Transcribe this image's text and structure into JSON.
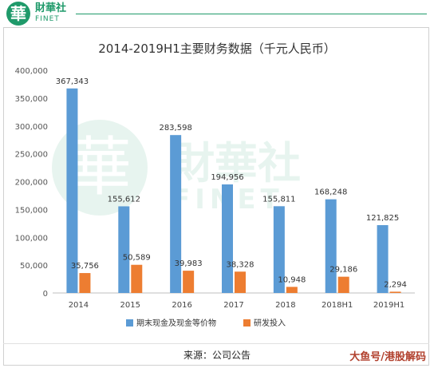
{
  "brand": {
    "logo_char": "華",
    "name": "財華社",
    "sub": "FINET"
  },
  "source_text": "来源：公司公告",
  "corner_mark": "大鱼号/港股解码",
  "colors": {
    "cash": "#5b9bd5",
    "rnd": "#ed7d31",
    "brand_green": "#1f9a6a"
  },
  "chart_data": {
    "type": "bar",
    "title": "2014-2019H1主要财务数据（千元人民币）",
    "categories": [
      "2014",
      "2015",
      "2016",
      "2017",
      "2018",
      "2018H1",
      "2019H1"
    ],
    "series": [
      {
        "name": "期末现金及现金等价物",
        "values": [
          367343,
          155612,
          283598,
          194956,
          155811,
          168248,
          121825
        ],
        "labels": [
          "367,343",
          "155,612",
          "283,598",
          "194,956",
          "155,811",
          "168,248",
          "121,825"
        ]
      },
      {
        "name": "研发投入",
        "values": [
          35756,
          50589,
          39983,
          38328,
          10948,
          29186,
          2294
        ],
        "labels": [
          "35,756",
          "50,589",
          "39,983",
          "38,328",
          "10,948",
          "29,186",
          "2,294"
        ]
      }
    ],
    "ylim": [
      0,
      400000
    ],
    "yticks": [
      "0",
      "50,000",
      "100,000",
      "150,000",
      "200,000",
      "250,000",
      "300,000",
      "350,000",
      "400,000"
    ],
    "ytick_values": [
      0,
      50000,
      100000,
      150000,
      200000,
      250000,
      300000,
      350000,
      400000
    ],
    "grid": false,
    "legend": "bottom"
  }
}
